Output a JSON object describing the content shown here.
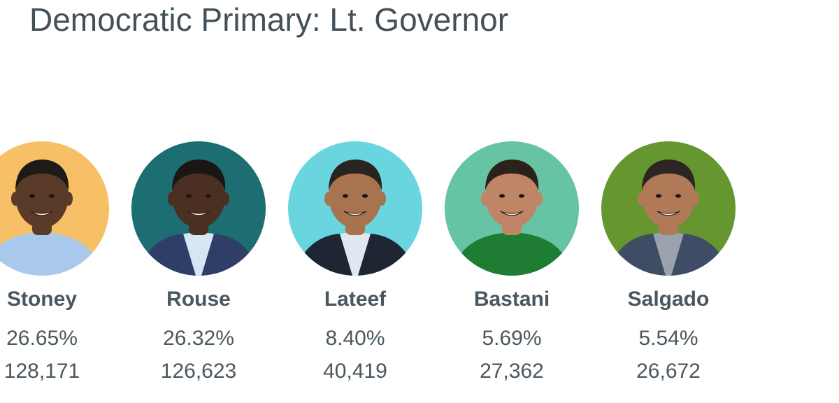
{
  "header": {
    "title": "Democratic Primary: Lt. Governor"
  },
  "candidates": [
    {
      "name": "Stoney",
      "percent": "26.65%",
      "votes": "128,171",
      "bg_color": "#f7c066",
      "skin_color": "#5a3a28",
      "hair_color": "#1e1a18",
      "shirt_color": "#a9c9ec",
      "jacket_color": "",
      "icon": "candidate-photo"
    },
    {
      "name": "Rouse",
      "percent": "26.32%",
      "votes": "126,623",
      "bg_color": "#1d6e72",
      "skin_color": "#4b2f22",
      "hair_color": "#1a1614",
      "shirt_color": "#d6e6f5",
      "jacket_color": "#2f3e66",
      "icon": "candidate-photo"
    },
    {
      "name": "Lateef",
      "percent": "8.40%",
      "votes": "40,419",
      "bg_color": "#69d6df",
      "skin_color": "#a8734f",
      "hair_color": "#2a2420",
      "shirt_color": "#dfe7f1",
      "jacket_color": "#1e2634",
      "icon": "candidate-photo"
    },
    {
      "name": "Bastani",
      "percent": "5.69%",
      "votes": "27,362",
      "bg_color": "#66c4a5",
      "skin_color": "#c08566",
      "hair_color": "#2d211b",
      "shirt_color": "#1e7c33",
      "jacket_color": "",
      "icon": "candidate-photo"
    },
    {
      "name": "Salgado",
      "percent": "5.54%",
      "votes": "26,672",
      "bg_color": "#659630",
      "skin_color": "#b07a58",
      "hair_color": "#2c2522",
      "shirt_color": "#9aa3ad",
      "jacket_color": "#3e4c66",
      "icon": "candidate-photo"
    }
  ]
}
